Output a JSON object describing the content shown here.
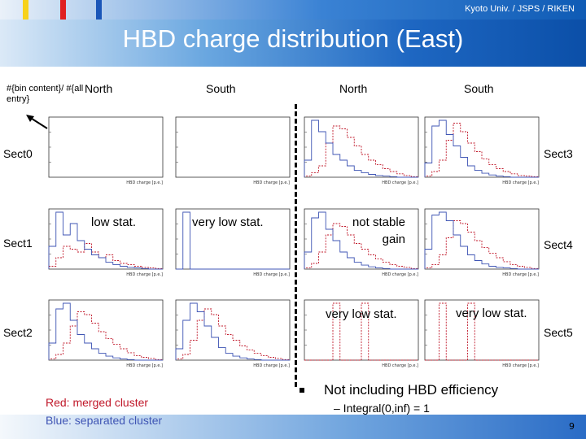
{
  "header": {
    "affiliation": "Kyoto Univ. / JSPS / RIKEN",
    "title": "HBD charge distribution (East)"
  },
  "axis_note": "#{bin content}/ #{all entry}",
  "columns": [
    "North",
    "South",
    "North",
    "South"
  ],
  "sectors_left": [
    "Sect0",
    "Sect1",
    "Sect2"
  ],
  "sectors_right": [
    "Sect3",
    "Sect4",
    "Sect5"
  ],
  "annotations": {
    "low_stat": "low stat.",
    "very_low_stat_1": "very low stat.",
    "not_stable_line1": "not stable",
    "not_stable_line2": "gain",
    "very_low_stat_2": "very low stat.",
    "very_low_stat_3": "very low stat."
  },
  "legend": {
    "red": "Red: merged cluster",
    "blue": "Blue: separated cluster",
    "red_color": "#c0182a",
    "blue_color": "#3f55b4"
  },
  "notes": {
    "main": "Not including HBD efficiency",
    "sub": "– Integral(0,inf) = 1"
  },
  "page_number": "9",
  "chart_data": [
    {
      "type": "line",
      "panel": "Sect0 North",
      "title": "",
      "xlabel": "HBD charge [p.e.]",
      "ylabel": "",
      "series": []
    },
    {
      "type": "line",
      "panel": "Sect0 South",
      "title": "",
      "xlabel": "HBD charge [p.e.]",
      "ylabel": "",
      "series": []
    },
    {
      "type": "line",
      "panel": "Sect3 North",
      "title": "",
      "xlabel": "HBD charge [p.e.]",
      "ylabel": "",
      "series": [
        {
          "name": "merged",
          "values": [
            0.02,
            0.08,
            0.2,
            0.6,
            0.9,
            0.85,
            0.7,
            0.55,
            0.4,
            0.3,
            0.22,
            0.15,
            0.1,
            0.06,
            0.03,
            0.01
          ]
        },
        {
          "name": "separated",
          "values": [
            0.3,
            1.0,
            0.8,
            0.6,
            0.4,
            0.3,
            0.2,
            0.12,
            0.08,
            0.05,
            0.03,
            0.02,
            0.01,
            0.0,
            0.0,
            0.0
          ]
        }
      ]
    },
    {
      "type": "line",
      "panel": "Sect3 South",
      "title": "",
      "xlabel": "HBD charge [p.e.]",
      "ylabel": "",
      "series": [
        {
          "name": "merged",
          "values": [
            0.02,
            0.1,
            0.3,
            0.65,
            0.95,
            0.8,
            0.6,
            0.45,
            0.32,
            0.22,
            0.15,
            0.1,
            0.06,
            0.03,
            0.02,
            0.01
          ]
        },
        {
          "name": "separated",
          "values": [
            0.25,
            0.9,
            1.0,
            0.75,
            0.55,
            0.35,
            0.2,
            0.12,
            0.07,
            0.04,
            0.02,
            0.01,
            0.0,
            0.0,
            0.0,
            0.0
          ]
        }
      ]
    },
    {
      "type": "line",
      "panel": "Sect1 North",
      "title": "",
      "xlabel": "HBD charge [p.e.]",
      "ylabel": "",
      "series": [
        {
          "name": "merged",
          "values": [
            0.05,
            0.2,
            0.4,
            0.35,
            0.3,
            0.45,
            0.3,
            0.2,
            0.25,
            0.15,
            0.1,
            0.08,
            0.05,
            0.03,
            0.02,
            0.01
          ]
        },
        {
          "name": "separated",
          "values": [
            0.4,
            1.0,
            0.6,
            0.8,
            0.5,
            0.35,
            0.25,
            0.2,
            0.12,
            0.08,
            0.05,
            0.03,
            0.02,
            0.01,
            0.0,
            0.0
          ]
        }
      ]
    },
    {
      "type": "line",
      "panel": "Sect1 South",
      "title": "",
      "xlabel": "HBD charge [p.e.]",
      "ylabel": "",
      "series": [
        {
          "name": "separated",
          "values": [
            0.0,
            1.0,
            0.0,
            0.0,
            0.0,
            0.0,
            0.0,
            0.0,
            0.0,
            0.0,
            0.0,
            0.0,
            0.0,
            0.0,
            0.0,
            0.0
          ]
        }
      ]
    },
    {
      "type": "line",
      "panel": "Sect4 North",
      "title": "",
      "xlabel": "HBD charge [p.e.]",
      "ylabel": "",
      "series": [
        {
          "name": "merged",
          "values": [
            0.02,
            0.1,
            0.3,
            0.6,
            0.8,
            0.75,
            0.6,
            0.45,
            0.35,
            0.25,
            0.18,
            0.12,
            0.08,
            0.05,
            0.03,
            0.01
          ]
        },
        {
          "name": "separated",
          "values": [
            0.3,
            0.9,
            1.0,
            0.7,
            0.5,
            0.3,
            0.2,
            0.12,
            0.07,
            0.04,
            0.02,
            0.01,
            0.0,
            0.0,
            0.0,
            0.0
          ]
        }
      ]
    },
    {
      "type": "line",
      "panel": "Sect4 South",
      "title": "",
      "xlabel": "HBD charge [p.e.]",
      "ylabel": "",
      "series": [
        {
          "name": "merged",
          "values": [
            0.02,
            0.08,
            0.25,
            0.55,
            0.85,
            0.8,
            0.65,
            0.5,
            0.38,
            0.28,
            0.2,
            0.13,
            0.08,
            0.05,
            0.03,
            0.01
          ]
        },
        {
          "name": "separated",
          "values": [
            0.35,
            0.95,
            1.0,
            0.85,
            0.6,
            0.4,
            0.25,
            0.15,
            0.09,
            0.05,
            0.03,
            0.02,
            0.01,
            0.0,
            0.0,
            0.0
          ]
        }
      ]
    },
    {
      "type": "line",
      "panel": "Sect2 North",
      "title": "",
      "xlabel": "HBD charge [p.e.]",
      "ylabel": "",
      "series": [
        {
          "name": "merged",
          "values": [
            0.02,
            0.1,
            0.3,
            0.6,
            0.85,
            0.8,
            0.65,
            0.5,
            0.38,
            0.28,
            0.2,
            0.13,
            0.08,
            0.05,
            0.03,
            0.01
          ]
        },
        {
          "name": "separated",
          "values": [
            0.3,
            0.9,
            1.0,
            0.7,
            0.45,
            0.3,
            0.2,
            0.12,
            0.07,
            0.04,
            0.02,
            0.01,
            0.0,
            0.0,
            0.0,
            0.0
          ]
        }
      ]
    },
    {
      "type": "line",
      "panel": "Sect2 South",
      "title": "",
      "xlabel": "HBD charge [p.e.]",
      "ylabel": "",
      "series": [
        {
          "name": "merged",
          "values": [
            0.02,
            0.1,
            0.35,
            0.7,
            0.9,
            0.8,
            0.6,
            0.45,
            0.35,
            0.25,
            0.18,
            0.12,
            0.08,
            0.05,
            0.03,
            0.01
          ]
        },
        {
          "name": "separated",
          "values": [
            0.2,
            0.7,
            1.0,
            0.85,
            0.6,
            0.4,
            0.22,
            0.12,
            0.07,
            0.04,
            0.02,
            0.01,
            0.0,
            0.0,
            0.0,
            0.0
          ]
        }
      ]
    },
    {
      "type": "line",
      "panel": "Sect5 North",
      "title": "",
      "xlabel": "HBD charge [p.e.]",
      "ylabel": "",
      "series": [
        {
          "name": "merged",
          "values": [
            0.0,
            0.0,
            0.0,
            0.0,
            1.0,
            0.0,
            0.0,
            0.0,
            1.0,
            0.0,
            0.0,
            0.0,
            0.0,
            0.0,
            0.0,
            0.0
          ]
        }
      ]
    },
    {
      "type": "line",
      "panel": "Sect5 South",
      "title": "",
      "xlabel": "HBD charge [p.e.]",
      "ylabel": "",
      "series": [
        {
          "name": "merged",
          "values": [
            0.0,
            0.0,
            1.0,
            0.0,
            0.0,
            0.0,
            1.0,
            0.0,
            0.0,
            0.0,
            0.0,
            0.0,
            0.0,
            0.0,
            0.0,
            0.0
          ]
        }
      ]
    }
  ]
}
